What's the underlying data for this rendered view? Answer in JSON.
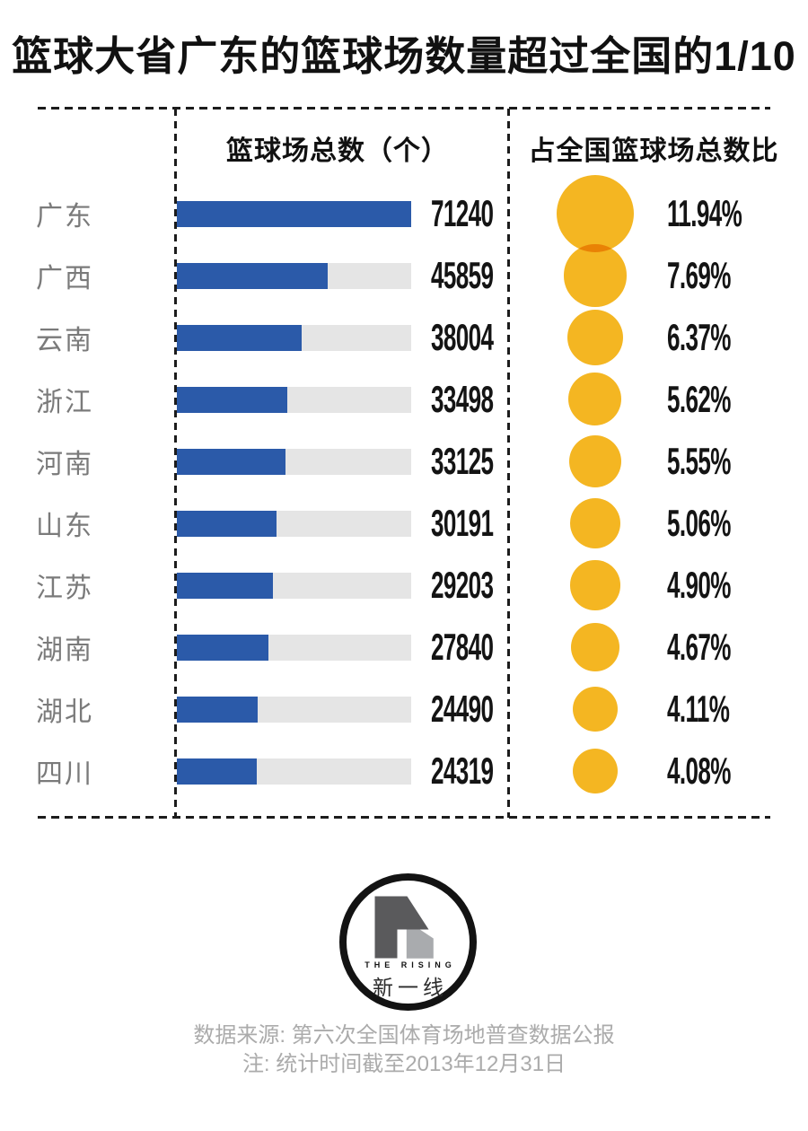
{
  "title": "篮球大省广东的篮球场数量超过全国的1/10",
  "columns": {
    "bars_header": "篮球场总数（个）",
    "bubbles_header": "占全国篮球场总数比"
  },
  "chart_data": {
    "type": "bar",
    "title": "篮球大省广东的篮球场数量超过全国的1/10",
    "categories": [
      "广东",
      "广西",
      "云南",
      "浙江",
      "河南",
      "山东",
      "江苏",
      "湖南",
      "湖北",
      "四川"
    ],
    "series": [
      {
        "name": "篮球场总数（个）",
        "type": "bar",
        "values": [
          71240,
          45859,
          38004,
          33498,
          33125,
          30191,
          29203,
          27840,
          24490,
          24319
        ]
      },
      {
        "name": "占全国篮球场总数比",
        "type": "bubble",
        "unit": "%",
        "values": [
          11.94,
          7.69,
          6.37,
          5.62,
          5.55,
          5.06,
          4.9,
          4.67,
          4.11,
          4.08
        ]
      }
    ],
    "value_labels": [
      "71240",
      "45859",
      "38004",
      "33498",
      "33125",
      "30191",
      "29203",
      "27840",
      "24490",
      "24319"
    ],
    "percent_labels": [
      "11.94%",
      "7.69%",
      "6.37%",
      "5.62%",
      "5.55%",
      "5.06%",
      "4.90%",
      "4.67%",
      "4.11%",
      "4.08%"
    ],
    "bar_axis_max": 71240,
    "bubble_area_max_percent": 11.94,
    "grid": false,
    "legend": "none"
  },
  "logo": {
    "text_en": "THE RISING",
    "text_zh": "新一线"
  },
  "footer": {
    "source": "数据来源: 第六次全国体育场地普查数据公报",
    "note": "注: 统计时间截至2013年12月31日"
  },
  "colors": {
    "bar_fill": "#2b5aa9",
    "bar_track": "#e5e5e5",
    "bubble": "#f4b622",
    "bubble_overlap": "#ea8a0b",
    "title_text": "#111111",
    "province_label": "#7a7a7a",
    "value_text": "#141414",
    "footer_text": "#ababab",
    "logo_dark": "#5a5a5c",
    "logo_light": "#a9abae"
  }
}
